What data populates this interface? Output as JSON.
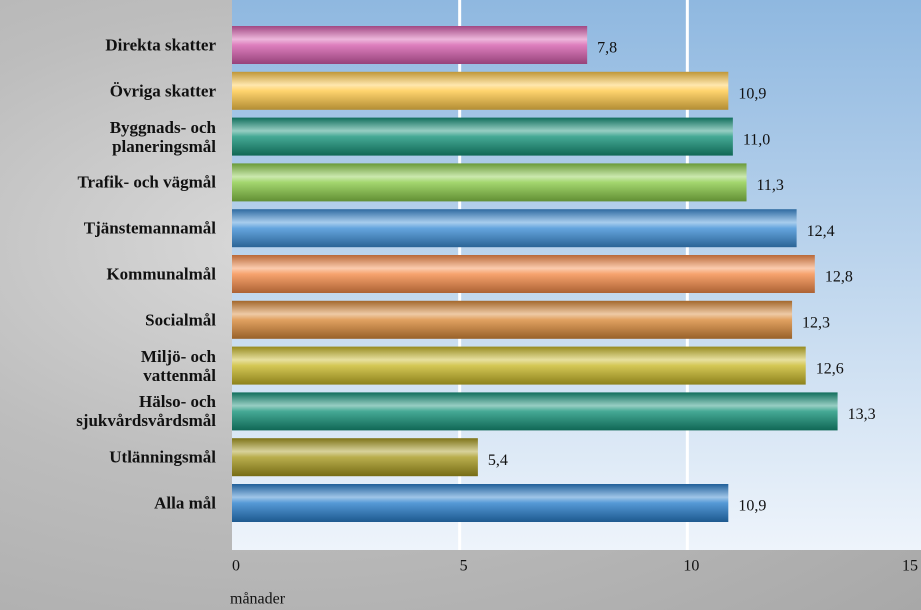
{
  "chart_data": {
    "type": "bar",
    "orientation": "horizontal",
    "categories": [
      "Direkta skatter",
      "Övriga skatter",
      "Byggnads- och\nplaneringsmål",
      "Trafik- och vägmål",
      "Tjänstemannamål",
      "Kommunalmål",
      "Socialmål",
      "Miljö- och\nvattenmål",
      "Hälso- och\nsjukvårdsvårdsmål",
      "Utlänningsmål",
      "Alla mål"
    ],
    "values": [
      7.8,
      10.9,
      11.0,
      11.3,
      12.4,
      12.8,
      12.3,
      12.6,
      13.3,
      5.4,
      10.9
    ],
    "value_labels": [
      "7,8",
      "10,9",
      "11,0",
      "11,3",
      "12,4",
      "12,8",
      "12,3",
      "12,6",
      "13,3",
      "5,4",
      "10,9"
    ],
    "colors": [
      "#d65fae",
      "#ffc94a",
      "#17937a",
      "#8ccc4a",
      "#3e8fd6",
      "#f58c4a",
      "#d98a3a",
      "#c9b92a",
      "#17937a",
      "#a89a20",
      "#2a7fcc"
    ],
    "xlim": [
      0,
      15
    ],
    "xticks": [
      0,
      5,
      10,
      15
    ],
    "xlabel": "månader",
    "grid": true
  }
}
